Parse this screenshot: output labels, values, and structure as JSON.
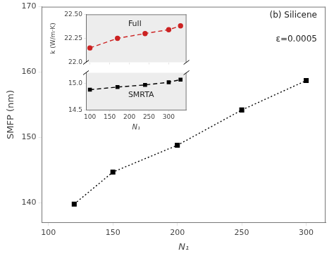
{
  "chart_data": [
    {
      "type": "line",
      "x": [
        120,
        150,
        200,
        250,
        300
      ],
      "series": [
        {
          "color": "black",
          "marker": "square",
          "line_style": "dotted",
          "values": [
            139.8,
            144.7,
            148.8,
            154.2,
            158.7
          ]
        }
      ],
      "xlabel": "N₁",
      "ylabel": "SMFP (nm)",
      "xlim": [
        95,
        315
      ],
      "xticks": [
        100,
        150,
        200,
        250,
        300
      ],
      "ylim": [
        137,
        170
      ],
      "yticks": [
        140,
        150,
        160,
        170
      ],
      "annotations": [
        "(b) Silicene",
        "ε=0.0005"
      ],
      "grid": false
    },
    {
      "type": "line",
      "x": [
        100,
        170,
        240,
        300,
        330
      ],
      "series": [
        {
          "color": "#cc2222",
          "marker": "circle",
          "line_style": "dashed",
          "values": [
            22.15,
            22.25,
            22.3,
            22.34,
            22.38
          ]
        }
      ],
      "ylabel": "k (W/m·K)",
      "xlim": [
        90,
        345
      ],
      "xticks": [
        100,
        150,
        200,
        250,
        300
      ],
      "ylim": [
        22.0,
        22.5
      ],
      "yticks": [
        {
          "value": 22.0,
          "label": "22.0"
        },
        22.25,
        {
          "value": 22.5,
          "label": "22.50"
        }
      ],
      "annotations": [
        "Full"
      ],
      "tick_labels": "y",
      "grid": false
    },
    {
      "type": "line",
      "x": [
        100,
        170,
        240,
        300,
        330
      ],
      "series": [
        {
          "color": "black",
          "marker": "square",
          "line_style": "dashed",
          "values": [
            14.88,
            14.93,
            14.97,
            15.02,
            15.07
          ]
        }
      ],
      "xlabel": "N₁",
      "xlim": [
        90,
        345
      ],
      "xticks": [
        100,
        150,
        200,
        250,
        300
      ],
      "ylim": [
        14.5,
        15.2
      ],
      "yticks": [
        14.5,
        {
          "value": 15.0,
          "label": "15.0"
        }
      ],
      "annotations": [
        "SMRTA"
      ],
      "grid": false
    }
  ]
}
